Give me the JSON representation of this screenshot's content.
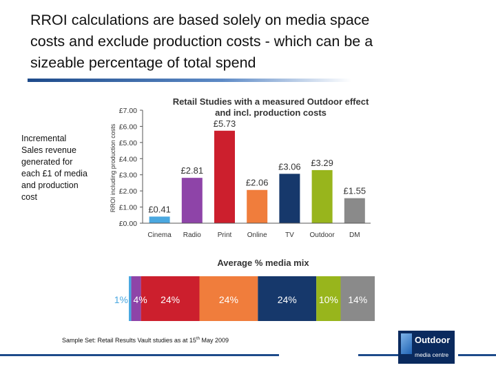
{
  "headline": {
    "line1": "RROI calculations are  based  solely on media space",
    "line2": "costs and exclude production costs - which can be a",
    "line3": "sizeable percentage of total spend"
  },
  "side_text": {
    "line1": "Incremental",
    "line2": "Sales revenue",
    "line3": "generated for",
    "line4": "each £1 of media",
    "line5": "and production",
    "line6": "cost"
  },
  "footnote": {
    "text": "Sample Set: Retail Results Vault studies as at 15",
    "sup": "th",
    "tail": " May 2009"
  },
  "logo": {
    "line1": "Outdoor",
    "line2": "media centre"
  },
  "colors": {
    "Cinema": "#4aa8e0",
    "Radio": "#8e44a8",
    "Print": "#cc1f2d",
    "Online": "#f07d3c",
    "TV": "#16386b",
    "Outdoor": "#98b51c",
    "DM": "#8a8a8a"
  },
  "chart_data": [
    {
      "type": "bar",
      "title": "Retail Studies with a measured Outdoor effect and incl. production costs",
      "ylabel": "RROI including production costs",
      "categories": [
        "Cinema",
        "Radio",
        "Print",
        "Online",
        "TV",
        "Outdoor",
        "DM"
      ],
      "values": [
        0.41,
        2.81,
        5.73,
        2.06,
        3.06,
        3.29,
        1.55
      ],
      "data_labels": [
        "£0.41",
        "£2.81",
        "£5.73",
        "£2.06",
        "£3.06",
        "£3.29",
        "£1.55"
      ],
      "y_ticks": [
        "£0.00",
        "£1.00",
        "£2.00",
        "£3.00",
        "£4.00",
        "£5.00",
        "£6.00",
        "£7.00"
      ],
      "ylim": [
        0,
        7
      ],
      "grid": false
    },
    {
      "type": "bar",
      "orientation": "horizontal-stacked",
      "title": "Average % media mix",
      "categories": [
        "Cinema",
        "Radio",
        "Print",
        "Online",
        "TV",
        "Outdoor",
        "DM"
      ],
      "values": [
        1,
        4,
        24,
        24,
        24,
        10,
        14
      ],
      "data_labels": [
        "1%",
        "4%",
        "24%",
        "24%",
        "24%",
        "10%",
        "14%"
      ]
    }
  ]
}
